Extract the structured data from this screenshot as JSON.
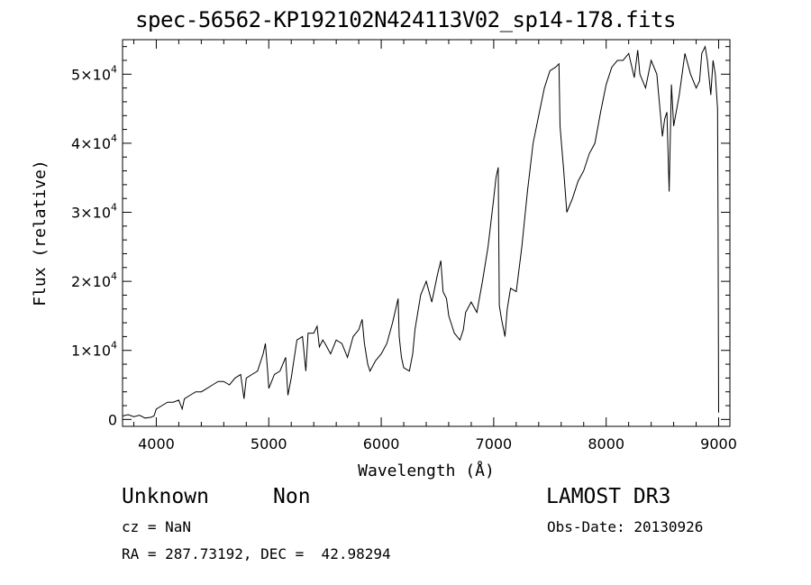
{
  "title": "spec-56562-KP192102N424113V02_sp14-178.fits",
  "chart_data": {
    "type": "line",
    "xlabel": "Wavelength (Å)",
    "ylabel": "Flux (relative)",
    "xlim": [
      3700,
      9100
    ],
    "ylim": [
      -1000,
      55000
    ],
    "xticks": [
      4000,
      5000,
      6000,
      7000,
      8000,
      9000
    ],
    "xtick_labels": [
      "4000",
      "5000",
      "6000",
      "7000",
      "8000",
      "9000"
    ],
    "yticks": [
      0,
      10000,
      20000,
      30000,
      40000,
      50000
    ],
    "ytick_labels": [
      {
        "mant": "0",
        "exp": ""
      },
      {
        "mant": "1×10",
        "exp": "4"
      },
      {
        "mant": "2×10",
        "exp": "4"
      },
      {
        "mant": "3×10",
        "exp": "4"
      },
      {
        "mant": "4×10",
        "exp": "4"
      },
      {
        "mant": "5×10",
        "exp": "4"
      }
    ],
    "color": "#000000",
    "series": [
      {
        "name": "flux",
        "x": [
          3700,
          3750,
          3800,
          3850,
          3900,
          3950,
          3980,
          4000,
          4050,
          4100,
          4150,
          4200,
          4230,
          4250,
          4300,
          4350,
          4400,
          4450,
          4500,
          4550,
          4600,
          4650,
          4700,
          4750,
          4780,
          4800,
          4850,
          4900,
          4950,
          4970,
          4990,
          5000,
          5050,
          5100,
          5150,
          5170,
          5200,
          5250,
          5300,
          5330,
          5350,
          5400,
          5430,
          5450,
          5480,
          5500,
          5550,
          5600,
          5650,
          5700,
          5750,
          5800,
          5830,
          5850,
          5880,
          5900,
          5950,
          6000,
          6050,
          6100,
          6150,
          6160,
          6180,
          6200,
          6250,
          6280,
          6300,
          6350,
          6400,
          6450,
          6500,
          6530,
          6550,
          6580,
          6600,
          6650,
          6700,
          6730,
          6750,
          6800,
          6850,
          6900,
          6950,
          7000,
          7020,
          7040,
          7050,
          7070,
          7100,
          7120,
          7150,
          7200,
          7250,
          7300,
          7350,
          7400,
          7450,
          7500,
          7550,
          7580,
          7590,
          7610,
          7620,
          7650,
          7700,
          7750,
          7800,
          7850,
          7900,
          7950,
          8000,
          8050,
          8100,
          8150,
          8200,
          8250,
          8280,
          8300,
          8350,
          8400,
          8450,
          8500,
          8520,
          8540,
          8560,
          8580,
          8600,
          8650,
          8700,
          8750,
          8800,
          8830,
          8850,
          8880,
          8900,
          8930,
          8950,
          8970,
          8990,
          8995,
          9000
        ],
        "y": [
          500,
          700,
          400,
          600,
          200,
          300,
          500,
          1500,
          2000,
          2500,
          2500,
          2800,
          1500,
          3000,
          3500,
          4000,
          4000,
          4500,
          5000,
          5500,
          5500,
          5000,
          6000,
          6500,
          3000,
          6000,
          6500,
          7000,
          9500,
          11000,
          7000,
          4500,
          6500,
          7000,
          9000,
          3500,
          6000,
          11500,
          12000,
          7000,
          12500,
          12500,
          13500,
          10500,
          11500,
          11000,
          9500,
          11500,
          11000,
          9000,
          12000,
          13000,
          14500,
          11000,
          8000,
          7000,
          8500,
          9500,
          11000,
          14000,
          17500,
          12000,
          9000,
          7500,
          7000,
          9500,
          13000,
          18000,
          20000,
          17000,
          21000,
          23000,
          18500,
          17500,
          15000,
          12500,
          11500,
          13000,
          15500,
          17000,
          15500,
          20000,
          25000,
          32000,
          35000,
          36500,
          16500,
          14500,
          12000,
          16000,
          19000,
          18500,
          25000,
          33000,
          40000,
          44000,
          48000,
          50500,
          51000,
          51500,
          42500,
          38500,
          36500,
          30000,
          32000,
          34500,
          36000,
          38500,
          40000,
          44500,
          48500,
          51000,
          52000,
          52000,
          53000,
          49500,
          53500,
          50000,
          48000,
          52000,
          50000,
          41000,
          43500,
          44500,
          33000,
          48500,
          42500,
          47000,
          53000,
          50000,
          48000,
          49000,
          53000,
          54000,
          52000,
          47000,
          52000,
          50000,
          45000,
          27000,
          1000
        ]
      }
    ]
  },
  "info": {
    "object_class": "Unknown",
    "object_subclass": "Non",
    "survey": "LAMOST DR3",
    "cz": "cz = NaN",
    "obs_date": "Obs-Date: 20130926",
    "radec": "RA = 287.73192, DEC =  42.98294"
  }
}
